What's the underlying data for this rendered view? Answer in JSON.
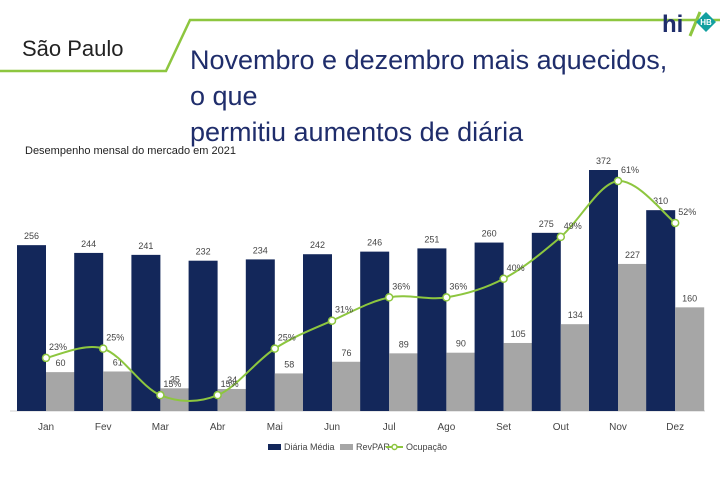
{
  "header": {
    "region": "São Paulo",
    "title_line1": "Novembro e dezembro mais aquecidos, o que",
    "title_line2": "permitiu aumentos de diária",
    "logo_text": "hi",
    "logo_badge": "HB"
  },
  "colors": {
    "navy": "#13275a",
    "gray": "#a6a6a6",
    "green": "#8dc63f",
    "title": "#1f2d6b"
  },
  "chart_data": {
    "type": "bar",
    "title": "Desempenho mensal do mercado em 2021",
    "categories": [
      "Jan",
      "Fev",
      "Mar",
      "Abr",
      "Mai",
      "Jun",
      "Jul",
      "Ago",
      "Set",
      "Out",
      "Nov",
      "Dez"
    ],
    "series": [
      {
        "name": "Diária Média",
        "type": "bar",
        "values": [
          256,
          244,
          241,
          232,
          234,
          242,
          246,
          251,
          260,
          275,
          372,
          310
        ]
      },
      {
        "name": "RevPAR",
        "type": "bar",
        "values": [
          60,
          61,
          35,
          34,
          58,
          76,
          89,
          90,
          105,
          134,
          227,
          160
        ]
      },
      {
        "name": "Ocupação",
        "type": "line",
        "values": [
          23,
          25,
          15,
          15,
          25,
          31,
          36,
          36,
          40,
          49,
          61,
          52
        ],
        "labels": [
          "23%",
          "25%",
          "15%",
          "15%",
          "25%",
          "31%",
          "36%",
          "36%",
          "40%",
          "49%",
          "61%",
          "52%"
        ]
      }
    ],
    "legend": [
      "Diária Média",
      "RevPAR",
      "Ocupação"
    ],
    "legend_position": "bottom"
  }
}
